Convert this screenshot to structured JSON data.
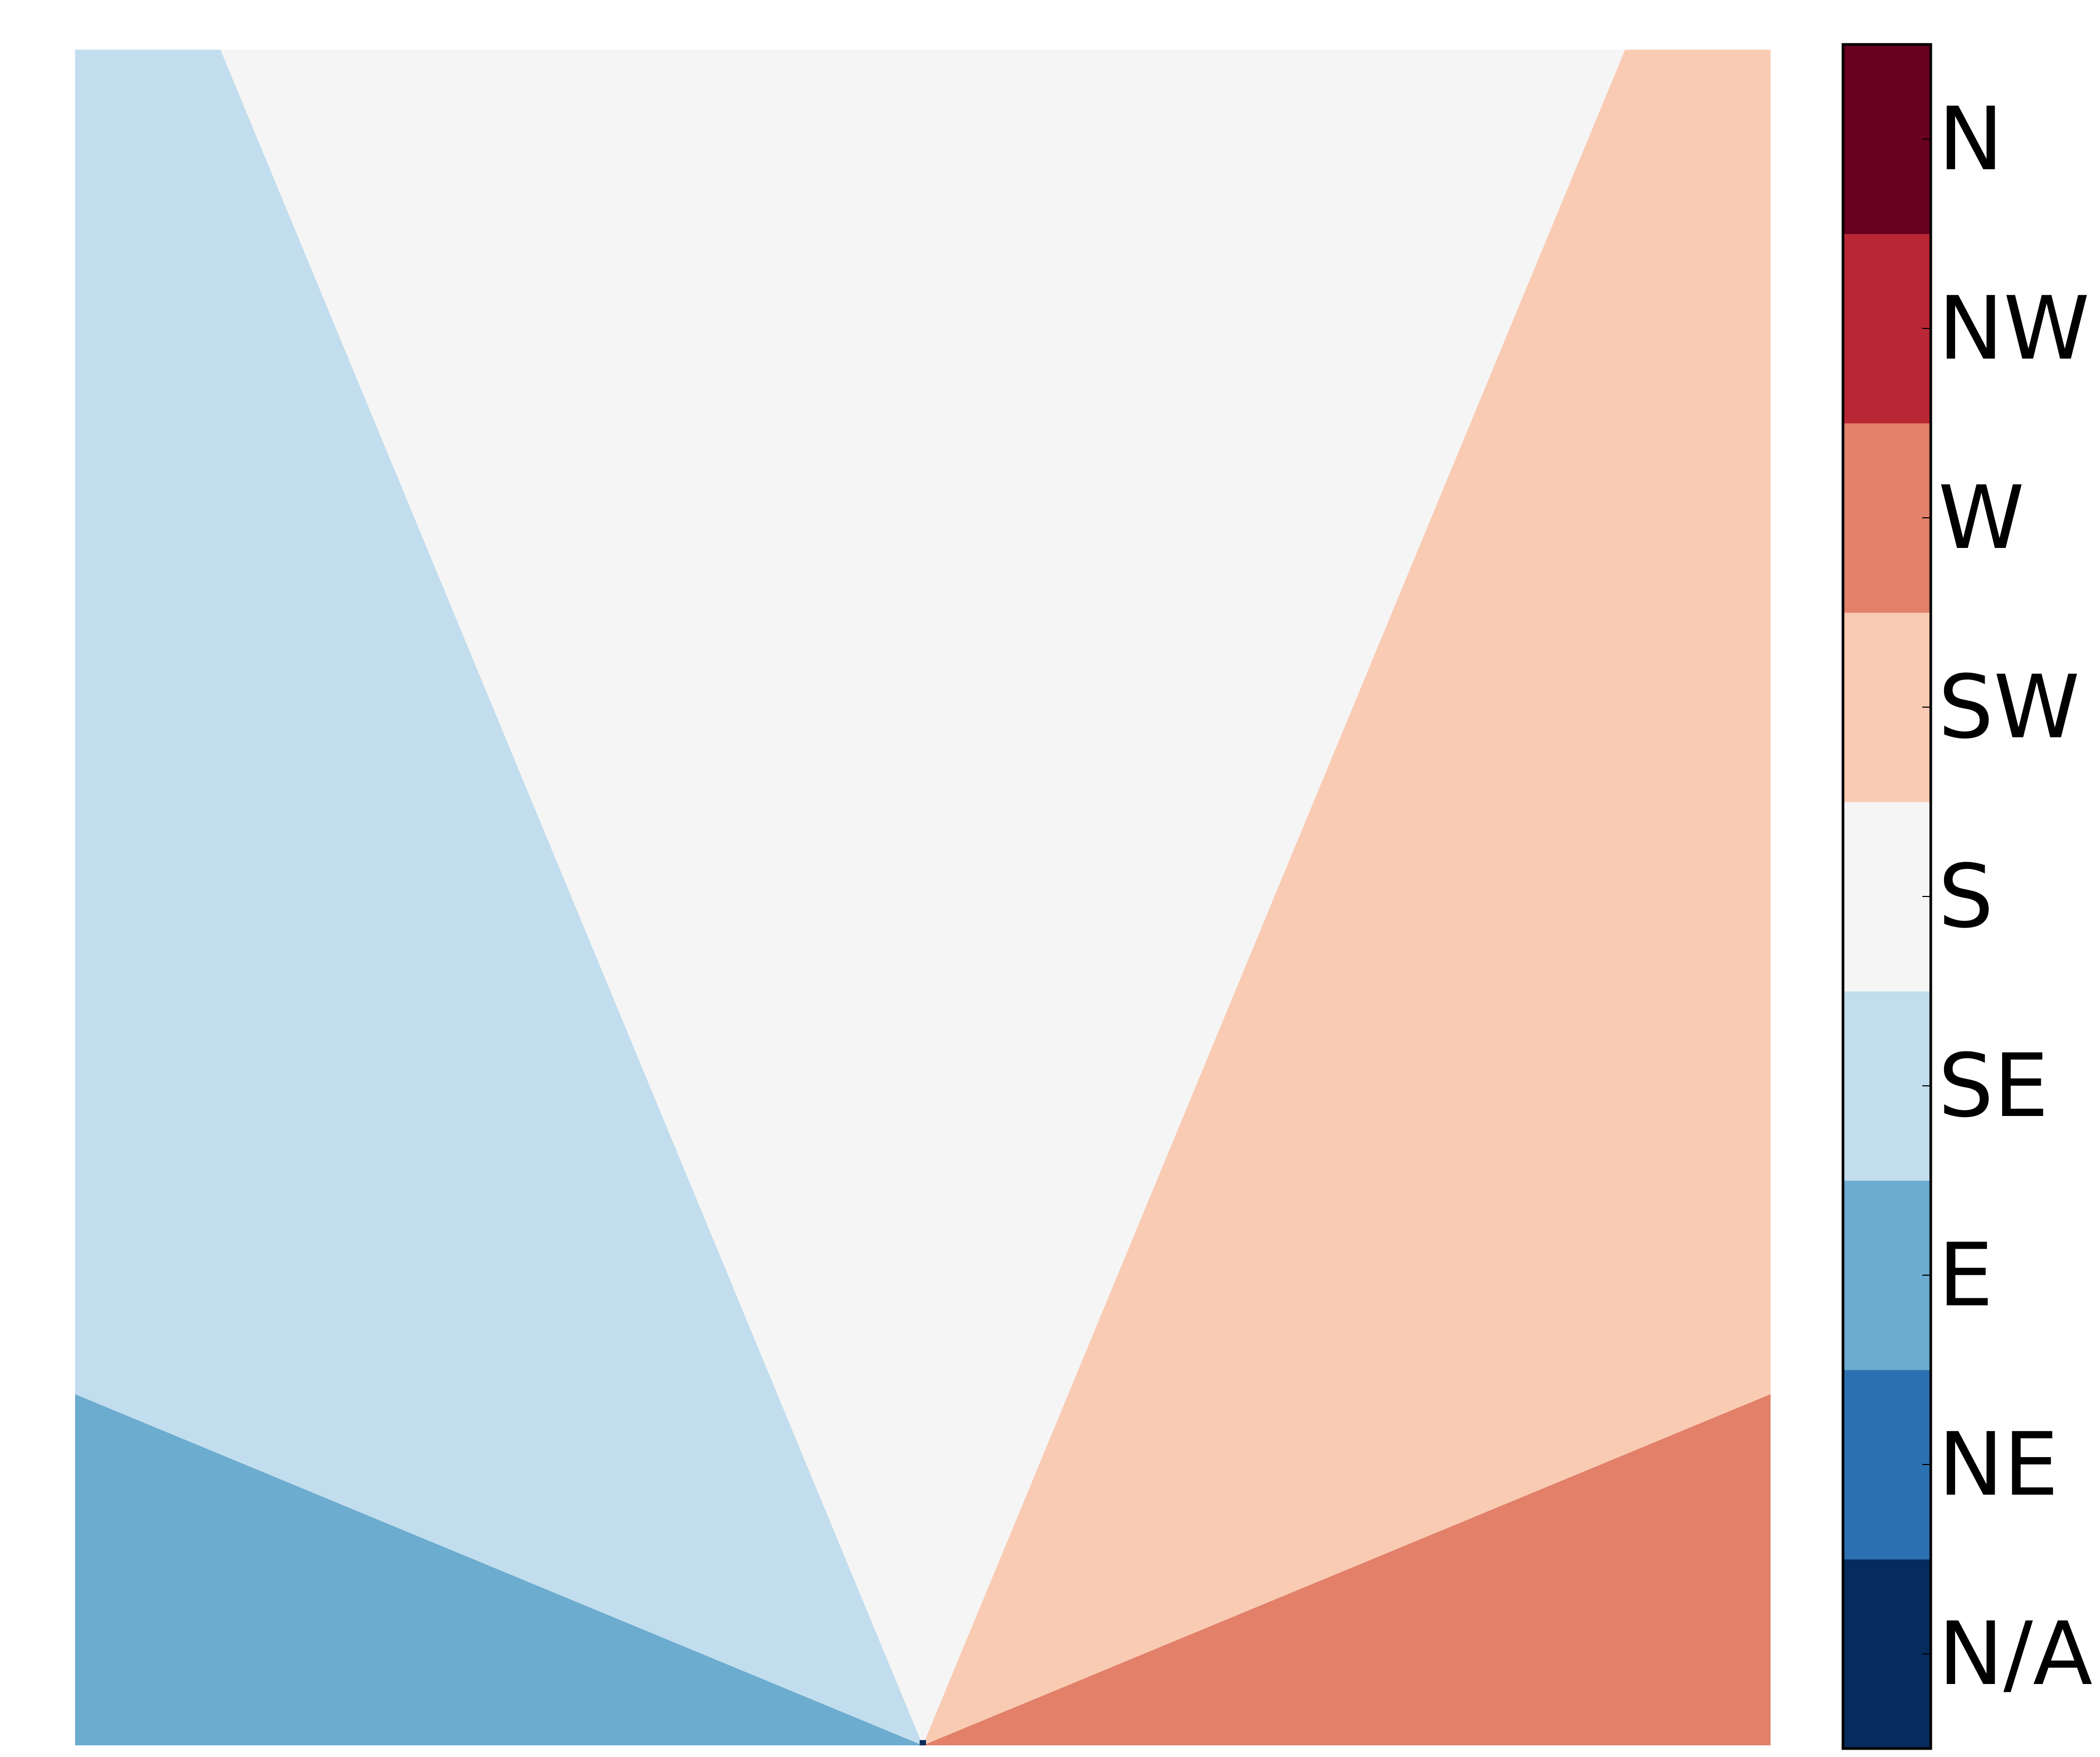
{
  "chart_data": {
    "type": "heatmap",
    "title": "",
    "xlabel": "",
    "ylabel": "",
    "x_ticks_visible": false,
    "y_ticks_visible": false,
    "grid": false,
    "description_of_field": "aspect direction from a single point at the bottom-centre of the square",
    "regions": [
      {
        "category": "E",
        "color": "#6baccf",
        "angle_from_vertical_deg": [
          -90,
          -67.5
        ]
      },
      {
        "category": "SE",
        "color": "#c2dded",
        "angle_from_vertical_deg": [
          -67.5,
          -22.5
        ]
      },
      {
        "category": "S",
        "color": "#f5f5f5",
        "angle_from_vertical_deg": [
          -22.5,
          22.5
        ]
      },
      {
        "category": "SW",
        "color": "#f9cbb3",
        "angle_from_vertical_deg": [
          22.5,
          67.5
        ]
      },
      {
        "category": "W",
        "color": "#e2806a",
        "angle_from_vertical_deg": [
          67.5,
          90
        ]
      }
    ],
    "colorbar": {
      "position": "right",
      "categories": [
        {
          "label": "N/A",
          "color": "#062c5d"
        },
        {
          "label": "NE",
          "color": "#2b70b0"
        },
        {
          "label": "E",
          "color": "#6baccf"
        },
        {
          "label": "SE",
          "color": "#c2dded"
        },
        {
          "label": "S",
          "color": "#f5f5f5"
        },
        {
          "label": "SW",
          "color": "#f9cbb3"
        },
        {
          "label": "W",
          "color": "#e2806a"
        },
        {
          "label": "NW",
          "color": "#b92734"
        },
        {
          "label": "N",
          "color": "#68001f"
        }
      ]
    }
  }
}
